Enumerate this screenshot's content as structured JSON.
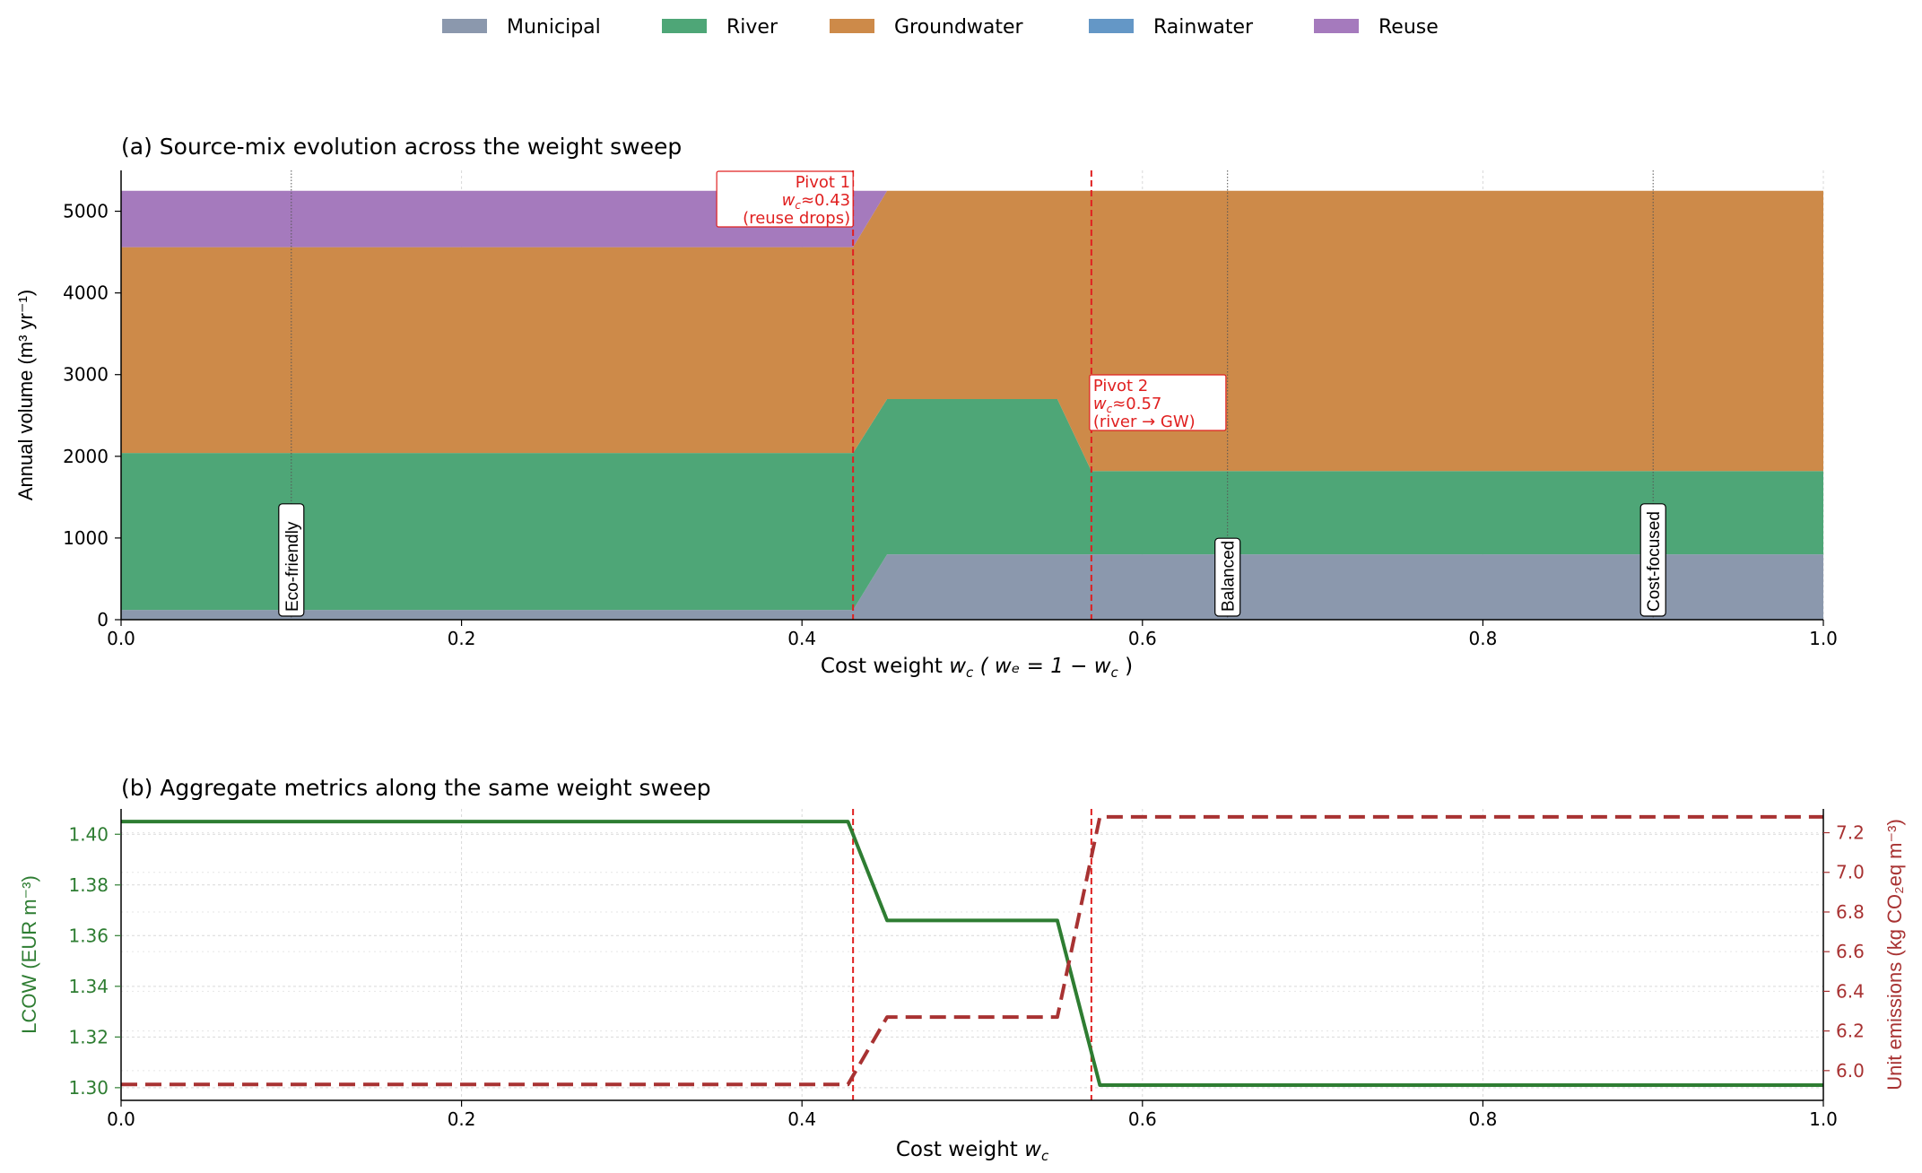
{
  "legend": {
    "items": [
      {
        "label": "Municipal",
        "color": "#8b98ad"
      },
      {
        "label": "River",
        "color": "#4ea677"
      },
      {
        "label": "Groundwater",
        "color": "#cd8a49"
      },
      {
        "label": "Rainwater",
        "color": "#6497c6"
      },
      {
        "label": "Reuse",
        "color": "#a57abd"
      }
    ]
  },
  "chart_data": [
    {
      "type": "area",
      "title": "(a) Source-mix evolution across the weight sweep",
      "xlabel_prefix": "Cost weight",
      "xlabel_italic": "w",
      "xlabel_sub": "c",
      "xlabel_tail": "( wₑ = 1 − w",
      "xlabel_tail_sub": "c",
      "xlabel_close": " )",
      "ylabel": "Annual volume  (m³ yr⁻¹)",
      "xlim": [
        0,
        1
      ],
      "ylim": [
        0,
        5500
      ],
      "xticks": [
        0.0,
        0.2,
        0.4,
        0.6,
        0.8,
        1.0
      ],
      "xtick_labels": [
        "0.0",
        "0.2",
        "0.4",
        "0.6",
        "0.8",
        "1.0"
      ],
      "yticks": [
        0,
        1000,
        2000,
        3000,
        4000,
        5000
      ],
      "ytick_labels": [
        "0",
        "1000",
        "2000",
        "3000",
        "4000",
        "5000"
      ],
      "grid": true,
      "x": [
        0.0,
        0.43,
        0.45,
        0.55,
        0.57,
        1.0
      ],
      "series": [
        {
          "name": "Municipal",
          "values": [
            120,
            120,
            800,
            800,
            800,
            800
          ]
        },
        {
          "name": "River",
          "values": [
            1920,
            1920,
            1900,
            1900,
            1020,
            1020
          ]
        },
        {
          "name": "Groundwater",
          "values": [
            2520,
            2520,
            2550,
            2550,
            3430,
            3430
          ]
        },
        {
          "name": "Rainwater",
          "values": [
            0,
            0,
            0,
            0,
            0,
            0
          ]
        },
        {
          "name": "Reuse",
          "values": [
            690,
            690,
            0,
            0,
            0,
            0
          ]
        }
      ],
      "scenarios": [
        {
          "x": 0.1,
          "label": "Eco-friendly"
        },
        {
          "x": 0.65,
          "label": "Balanced"
        },
        {
          "x": 0.9,
          "label": "Cost-focused"
        }
      ],
      "pivots": [
        {
          "x": 0.43,
          "lines": [
            "Pivot 1",
            "wₒ≈0.43",
            "(reuse drops)"
          ],
          "label_line1": "Pivot 1",
          "label_line2_var": "w",
          "label_line2_sub": "c",
          "label_line2_val": "≈0.43",
          "label_line3": "(reuse drops)"
        },
        {
          "x": 0.57,
          "label_line1": "Pivot 2",
          "label_line2_var": "w",
          "label_line2_sub": "c",
          "label_line2_val": "≈0.57",
          "label_line3": "(river → GW)"
        }
      ]
    },
    {
      "type": "line",
      "title": "(b) Aggregate metrics along the same weight sweep",
      "xlabel_prefix": "Cost weight",
      "xlabel_italic": "w",
      "xlabel_sub": "c",
      "ylabel_left": "LCOW (EUR m⁻³)",
      "ylabel_right": "Unit emissions (kg CO₂eq m⁻³)",
      "xlim": [
        0,
        1
      ],
      "ylim_left": [
        1.295,
        1.41
      ],
      "ylim_right": [
        5.85,
        7.32
      ],
      "xticks": [
        0.0,
        0.2,
        0.4,
        0.6,
        0.8,
        1.0
      ],
      "xtick_labels": [
        "0.0",
        "0.2",
        "0.4",
        "0.6",
        "0.8",
        "1.0"
      ],
      "yticks_left": [
        1.3,
        1.32,
        1.34,
        1.36,
        1.38,
        1.4
      ],
      "ytick_labels_left": [
        "1.30",
        "1.32",
        "1.34",
        "1.36",
        "1.38",
        "1.40"
      ],
      "yticks_right": [
        6.0,
        6.2,
        6.4,
        6.6,
        6.8,
        7.0,
        7.2
      ],
      "ytick_labels_right": [
        "6.0",
        "6.2",
        "6.4",
        "6.6",
        "6.8",
        "7.0",
        "7.2"
      ],
      "grid": true,
      "pivots": [
        0.43,
        0.57
      ],
      "series": [
        {
          "axis": "left",
          "color": "#2e7d32",
          "style": "solid",
          "x": [
            0.0,
            0.427,
            0.45,
            0.55,
            0.575,
            1.0
          ],
          "values": [
            1.405,
            1.405,
            1.366,
            1.366,
            1.301,
            1.301
          ]
        },
        {
          "axis": "right",
          "color": "#a83232",
          "style": "dashed",
          "x": [
            0.0,
            0.427,
            0.45,
            0.55,
            0.575,
            1.0
          ],
          "values": [
            5.93,
            5.93,
            6.27,
            6.27,
            7.28,
            7.28
          ]
        }
      ]
    }
  ]
}
